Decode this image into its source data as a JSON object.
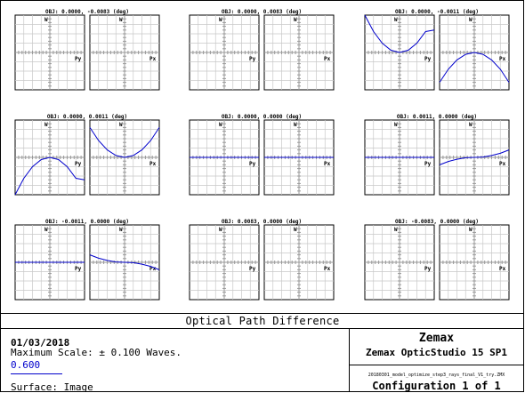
{
  "footer": {
    "title": "Optical Path Difference",
    "date": "01/03/2018",
    "max_scale": "Maximum Scale: ± 0.100 Waves.",
    "wavelength": "0.600",
    "surface": "Surface: Image",
    "company": "Zemax",
    "product": "Zemax OpticStudio 15 SP1",
    "file": "20180301_model_optimize_step3_rays_final_V1_try.ZMX",
    "configuration": "Configuration 1 of 1"
  },
  "colors": {
    "curve": "#0000cc",
    "grid": "#c8c8c8",
    "axis": "#999999"
  },
  "chart_data": {
    "type": "line",
    "ylim": [
      -0.1,
      0.1
    ],
    "xlim": [
      -1,
      1
    ],
    "axis_labels": {
      "y": "W",
      "x_tangential": "Py",
      "x_sagittal": "Px"
    },
    "fields": [
      {
        "label": "OBJ: 0.0000, -0.0083 (deg)",
        "tangential": {
          "x": [
            -1,
            1
          ],
          "y": [
            0,
            0
          ],
          "visible": false
        },
        "sagittal": {
          "x": [
            -1,
            1
          ],
          "y": [
            0,
            0
          ],
          "visible": false
        }
      },
      {
        "label": "OBJ: 0.0000, 0.0083 (deg)",
        "tangential": {
          "x": [
            -1,
            1
          ],
          "y": [
            0,
            0
          ],
          "visible": false
        },
        "sagittal": {
          "x": [
            -1,
            1
          ],
          "y": [
            0,
            0
          ],
          "visible": false
        }
      },
      {
        "label": "OBJ: 0.0000, -0.0011 (deg)",
        "tangential": {
          "x": [
            -1,
            -0.75,
            -0.5,
            -0.25,
            0,
            0.25,
            0.5,
            0.75,
            1
          ],
          "y": [
            0.1,
            0.056,
            0.025,
            0.006,
            0,
            0.006,
            0.025,
            0.056,
            0.06
          ]
        },
        "sagittal": {
          "x": [
            -1,
            -0.75,
            -0.5,
            -0.25,
            0,
            0.25,
            0.5,
            0.75,
            1
          ],
          "y": [
            -0.08,
            -0.045,
            -0.02,
            -0.005,
            0,
            -0.005,
            -0.02,
            -0.045,
            -0.08
          ]
        }
      },
      {
        "label": "OBJ: 0.0000, 0.0011 (deg)",
        "tangential": {
          "x": [
            -1,
            -0.75,
            -0.5,
            -0.25,
            0,
            0.25,
            0.5,
            0.75,
            1
          ],
          "y": [
            -0.1,
            -0.056,
            -0.025,
            -0.006,
            0,
            -0.006,
            -0.025,
            -0.056,
            -0.06
          ]
        },
        "sagittal": {
          "x": [
            -1,
            -0.75,
            -0.5,
            -0.25,
            0,
            0.25,
            0.5,
            0.75,
            1
          ],
          "y": [
            0.08,
            0.045,
            0.02,
            0.005,
            0,
            0.005,
            0.02,
            0.045,
            0.08
          ]
        }
      },
      {
        "label": "OBJ: 0.0000, 0.0000 (deg)",
        "tangential": {
          "x": [
            -1,
            -0.5,
            0,
            0.5,
            1
          ],
          "y": [
            0,
            0,
            0,
            0,
            0
          ]
        },
        "sagittal": {
          "x": [
            -1,
            -0.5,
            0,
            0.5,
            1
          ],
          "y": [
            0,
            0,
            0,
            0,
            0
          ]
        }
      },
      {
        "label": "OBJ: 0.0011, 0.0000 (deg)",
        "tangential": {
          "x": [
            -1,
            -0.5,
            0,
            0.5,
            1
          ],
          "y": [
            0,
            0,
            0,
            0,
            0
          ]
        },
        "sagittal": {
          "x": [
            -1,
            -0.75,
            -0.5,
            -0.25,
            0,
            0.25,
            0.5,
            0.75,
            1
          ],
          "y": [
            -0.02,
            -0.011,
            -0.005,
            -0.001,
            0,
            0.001,
            0.005,
            0.011,
            0.02
          ]
        }
      },
      {
        "label": "OBJ: -0.0011, 0.0000 (deg)",
        "tangential": {
          "x": [
            -1,
            -0.5,
            0,
            0.5,
            1
          ],
          "y": [
            0,
            0,
            0,
            0,
            0
          ]
        },
        "sagittal": {
          "x": [
            -1,
            -0.75,
            -0.5,
            -0.25,
            0,
            0.25,
            0.5,
            0.75,
            1
          ],
          "y": [
            0.02,
            0.011,
            0.005,
            0.001,
            0,
            -0.001,
            -0.005,
            -0.011,
            -0.02
          ]
        }
      },
      {
        "label": "OBJ: 0.0083, 0.0000 (deg)",
        "tangential": {
          "x": [
            -1,
            1
          ],
          "y": [
            0,
            0
          ],
          "visible": false
        },
        "sagittal": {
          "x": [
            -1,
            1
          ],
          "y": [
            0,
            0
          ],
          "visible": false
        }
      },
      {
        "label": "OBJ: -0.0083, 0.0000 (deg)",
        "tangential": {
          "x": [
            -1,
            1
          ],
          "y": [
            0,
            0
          ],
          "visible": false
        },
        "sagittal": {
          "x": [
            -1,
            1
          ],
          "y": [
            0,
            0
          ],
          "visible": false
        }
      }
    ]
  }
}
